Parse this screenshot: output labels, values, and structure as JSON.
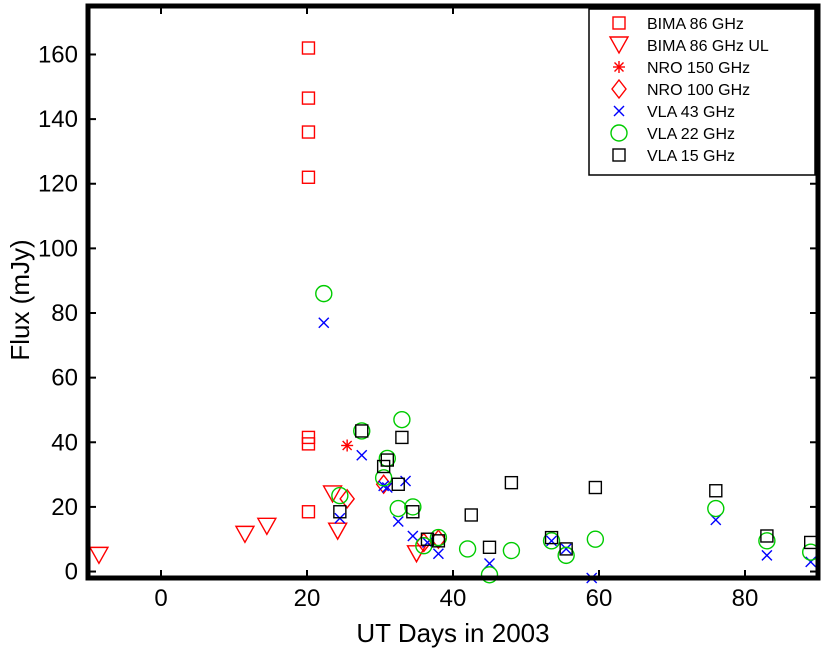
{
  "chart_data": {
    "type": "scatter",
    "title": "",
    "xlabel": "UT Days in 2003",
    "ylabel": "Flux (mJy)",
    "xlim": [
      -10,
      90
    ],
    "ylim": [
      -2,
      175
    ],
    "xticks": [
      0,
      20,
      40,
      60,
      80
    ],
    "yticks": [
      0,
      20,
      40,
      60,
      80,
      100,
      120,
      140,
      160
    ],
    "legend_position": "top-right",
    "series": [
      {
        "name": "BIMA 86 GHz",
        "marker": "square",
        "color": "#ff0000",
        "points": [
          [
            20.2,
            162
          ],
          [
            20.2,
            146.5
          ],
          [
            20.2,
            136
          ],
          [
            20.2,
            122
          ],
          [
            20.2,
            41.5
          ],
          [
            20.2,
            39.5
          ],
          [
            20.2,
            18.5
          ]
        ]
      },
      {
        "name": "BIMA 86 GHz UL",
        "marker": "triangle-down",
        "color": "#ff0000",
        "points": [
          [
            -8.5,
            5
          ],
          [
            11.5,
            11.5
          ],
          [
            14.5,
            14
          ],
          [
            23.5,
            24
          ],
          [
            24.2,
            12.5
          ],
          [
            35,
            5.5
          ]
        ]
      },
      {
        "name": "NRO 150 GHz",
        "marker": "asterisk",
        "color": "#ff0000",
        "points": [
          [
            25.5,
            39
          ]
        ]
      },
      {
        "name": "NRO 100 GHz",
        "marker": "diamond",
        "color": "#ff0000",
        "points": [
          [
            25.5,
            22.5
          ],
          [
            30.5,
            27
          ],
          [
            36,
            9
          ],
          [
            38,
            10
          ]
        ]
      },
      {
        "name": "VLA 43 GHz",
        "marker": "x",
        "color": "#0000ff",
        "points": [
          [
            22.3,
            77
          ],
          [
            24.5,
            16.5
          ],
          [
            27.5,
            36
          ],
          [
            30.5,
            26.5
          ],
          [
            31,
            26
          ],
          [
            32.5,
            15.5
          ],
          [
            33.5,
            28
          ],
          [
            34.5,
            11
          ],
          [
            36.5,
            9
          ],
          [
            38,
            5.5
          ],
          [
            45,
            2.5
          ],
          [
            53.5,
            9.5
          ],
          [
            55.5,
            7
          ],
          [
            59,
            -2
          ],
          [
            76,
            16
          ],
          [
            83,
            5
          ],
          [
            89,
            3
          ]
        ]
      },
      {
        "name": "VLA 22 GHz",
        "marker": "circle",
        "color": "#00cc00",
        "points": [
          [
            22.3,
            86
          ],
          [
            24.5,
            23.5
          ],
          [
            27.5,
            43.5
          ],
          [
            30.5,
            29
          ],
          [
            31,
            35
          ],
          [
            32.5,
            19.5
          ],
          [
            33,
            47
          ],
          [
            34.5,
            20
          ],
          [
            36,
            8
          ],
          [
            38,
            10.5
          ],
          [
            42,
            7
          ],
          [
            45,
            -1
          ],
          [
            48,
            6.5
          ],
          [
            53.5,
            9.5
          ],
          [
            55.5,
            5
          ],
          [
            59.5,
            10
          ],
          [
            76,
            19.5
          ],
          [
            83,
            9.5
          ],
          [
            89,
            6
          ]
        ]
      },
      {
        "name": "VLA 15 GHz",
        "marker": "square",
        "color": "#000000",
        "points": [
          [
            24.5,
            18.5
          ],
          [
            27.5,
            43.5
          ],
          [
            30.5,
            32.5
          ],
          [
            31,
            34.5
          ],
          [
            32.5,
            27
          ],
          [
            33,
            41.5
          ],
          [
            34.5,
            18.5
          ],
          [
            36.5,
            10
          ],
          [
            38,
            9.5
          ],
          [
            42.5,
            17.5
          ],
          [
            45,
            7.5
          ],
          [
            48,
            27.5
          ],
          [
            53.5,
            10.5
          ],
          [
            55.5,
            7
          ],
          [
            59.5,
            26
          ],
          [
            76,
            25
          ],
          [
            83,
            11
          ],
          [
            89,
            9
          ]
        ]
      }
    ]
  }
}
